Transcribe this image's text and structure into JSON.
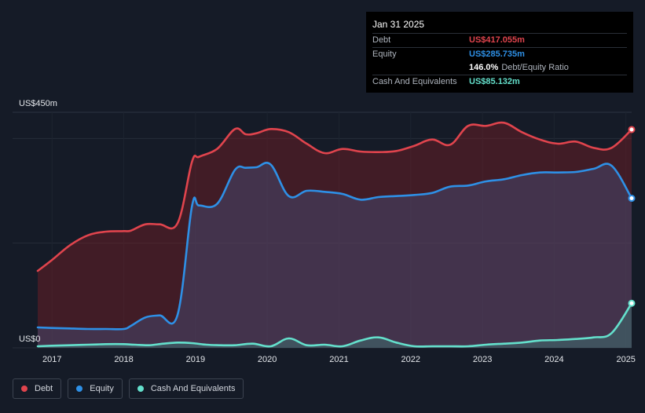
{
  "colors": {
    "debt": "#e0444d",
    "equity": "#2e90e6",
    "cash": "#64e0cc",
    "background": "#151b27"
  },
  "tooltip": {
    "date": "Jan 31 2025",
    "debt_label": "Debt",
    "debt_value": "US$417.055m",
    "equity_label": "Equity",
    "equity_value": "US$285.735m",
    "ratio_value": "146.0%",
    "ratio_label": "Debt/Equity Ratio",
    "cash_label": "Cash And Equivalents",
    "cash_value": "US$85.132m"
  },
  "legend": {
    "debt": "Debt",
    "equity": "Equity",
    "cash": "Cash And Equivalents"
  },
  "chart_data": {
    "type": "area",
    "ylim": [
      0,
      450
    ],
    "y_top_label": "US$450m",
    "y_bottom_label": "US$0",
    "x_ticks": [
      "2017",
      "2018",
      "2019",
      "2020",
      "2021",
      "2022",
      "2023",
      "2024",
      "2025"
    ],
    "x_tick_years": [
      2017,
      2018,
      2019,
      2020,
      2021,
      2022,
      2023,
      2024,
      2025
    ],
    "x_range": [
      2016.8,
      2025.08
    ],
    "gridlines": [
      0,
      200,
      400
    ],
    "series": [
      {
        "name": "Debt",
        "key": "debt",
        "x": [
          2016.8,
          2017.0,
          2017.25,
          2017.5,
          2017.75,
          2018.0,
          2018.1,
          2018.3,
          2018.5,
          2018.75,
          2018.95,
          2019.05,
          2019.3,
          2019.55,
          2019.7,
          2019.85,
          2020.05,
          2020.3,
          2020.55,
          2020.8,
          2021.05,
          2021.3,
          2021.55,
          2021.8,
          2022.05,
          2022.3,
          2022.55,
          2022.8,
          2023.05,
          2023.3,
          2023.55,
          2023.8,
          2024.05,
          2024.3,
          2024.55,
          2024.8,
          2025.08
        ],
        "y": [
          147,
          168,
          196,
          215,
          222,
          223,
          224,
          236,
          236,
          238,
          355,
          365,
          380,
          418,
          408,
          410,
          418,
          412,
          390,
          372,
          380,
          375,
          374,
          376,
          386,
          398,
          388,
          424,
          424,
          430,
          412,
          398,
          390,
          394,
          382,
          382,
          417.055
        ]
      },
      {
        "name": "Equity",
        "key": "equity",
        "x": [
          2016.8,
          2017.0,
          2017.25,
          2017.5,
          2017.75,
          2018.0,
          2018.1,
          2018.3,
          2018.5,
          2018.75,
          2018.95,
          2019.05,
          2019.3,
          2019.55,
          2019.7,
          2019.85,
          2020.05,
          2020.3,
          2020.55,
          2020.8,
          2021.05,
          2021.3,
          2021.55,
          2021.8,
          2022.05,
          2022.3,
          2022.55,
          2022.8,
          2023.05,
          2023.3,
          2023.55,
          2023.8,
          2024.05,
          2024.3,
          2024.55,
          2024.8,
          2025.08
        ],
        "y": [
          39,
          38,
          37,
          36,
          36,
          36,
          42,
          58,
          62,
          63,
          270,
          272,
          275,
          340,
          344,
          345,
          350,
          290,
          300,
          298,
          294,
          283,
          288,
          290,
          292,
          296,
          308,
          310,
          318,
          322,
          330,
          335,
          335,
          336,
          342,
          348,
          285.735
        ]
      },
      {
        "name": "Cash And Equivalents",
        "key": "cash",
        "x": [
          2016.8,
          2017.0,
          2017.25,
          2017.5,
          2017.75,
          2018.0,
          2018.15,
          2018.35,
          2018.55,
          2018.75,
          2018.95,
          2019.15,
          2019.35,
          2019.55,
          2019.8,
          2020.05,
          2020.3,
          2020.55,
          2020.8,
          2021.05,
          2021.3,
          2021.55,
          2021.8,
          2022.05,
          2022.3,
          2022.55,
          2022.8,
          2023.05,
          2023.3,
          2023.55,
          2023.8,
          2024.05,
          2024.3,
          2024.55,
          2024.8,
          2025.08
        ],
        "y": [
          3,
          4,
          5,
          6,
          7,
          7,
          6,
          5,
          8,
          10,
          9,
          6,
          5,
          5,
          8,
          3,
          18,
          5,
          6,
          3,
          14,
          20,
          10,
          3,
          3,
          3,
          3,
          6,
          8,
          10,
          14,
          15,
          17,
          20,
          28,
          85.132
        ]
      }
    ]
  }
}
